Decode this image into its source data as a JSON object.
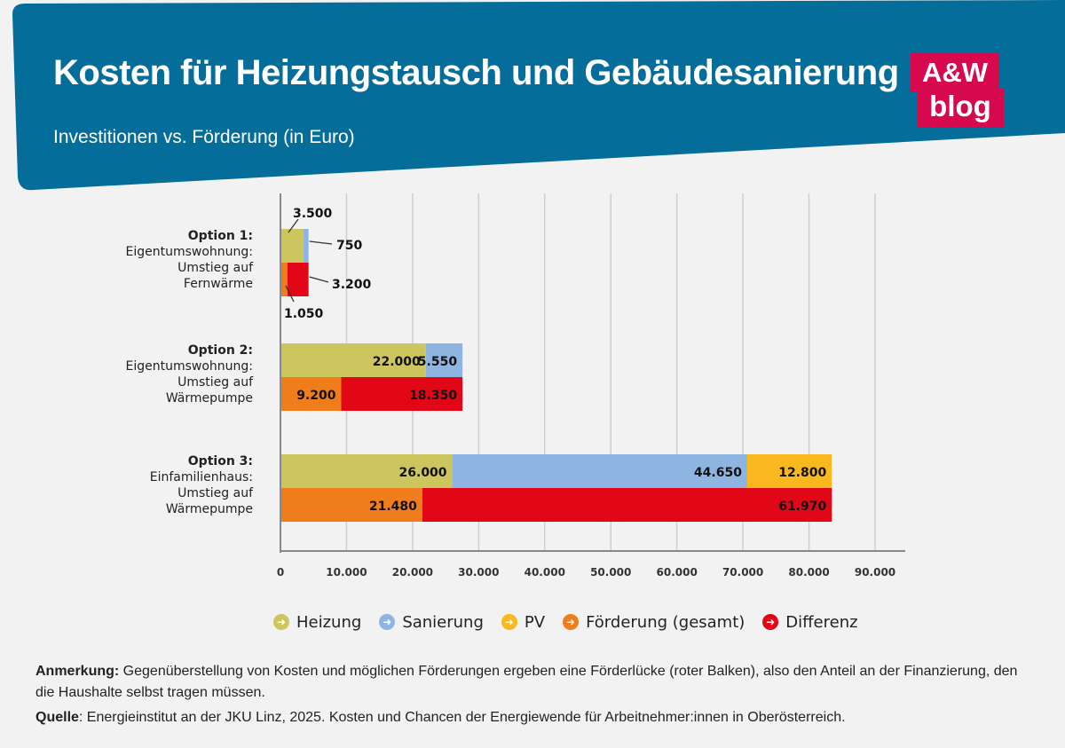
{
  "header": {
    "title": "Kosten für Heizungstausch und Gebäudesanierung",
    "subtitle": "Investitionen vs. Förderung (in Euro)",
    "logo_line1": "A&W",
    "logo_line2": "blog",
    "background_color": "#046d99",
    "logo_color": "#d6094e"
  },
  "chart_data": {
    "type": "bar",
    "orientation": "horizontal",
    "stacked": true,
    "xlim": [
      0,
      90000
    ],
    "x_ticks": [
      0,
      10000,
      20000,
      30000,
      40000,
      50000,
      60000,
      70000,
      80000,
      90000
    ],
    "x_tick_labels": [
      "0",
      "10.000",
      "20.000",
      "30.000",
      "40.000",
      "50.000",
      "60.000",
      "70.000",
      "80.000",
      "90.000"
    ],
    "grid": "vertical",
    "legend_position": "bottom",
    "colors": {
      "Heizung": "#cdc65f",
      "Sanierung": "#8eb5e1",
      "PV": "#f8b81e",
      "Förderung (gesamt)": "#ef7d1c",
      "Differenz": "#e20716"
    },
    "categories": [
      {
        "label_lines": [
          "Option 1:",
          "Eigentumswohnung:",
          "Umstieg auf",
          "Fernwärme"
        ],
        "cost_bar": [
          {
            "series": "Heizung",
            "value": 3500,
            "label": "3.500"
          },
          {
            "series": "Sanierung",
            "value": 750,
            "label": "750"
          }
        ],
        "funding_bar": [
          {
            "series": "Förderung (gesamt)",
            "value": 1050,
            "label": "1.050"
          },
          {
            "series": "Differenz",
            "value": 3200,
            "label": "3.200"
          }
        ]
      },
      {
        "label_lines": [
          "Option 2:",
          "Eigentumswohnung:",
          "Umstieg auf",
          "Wärmepumpe"
        ],
        "cost_bar": [
          {
            "series": "Heizung",
            "value": 22000,
            "label": "22.000"
          },
          {
            "series": "Sanierung",
            "value": 5550,
            "label": "5.550"
          }
        ],
        "funding_bar": [
          {
            "series": "Förderung (gesamt)",
            "value": 9200,
            "label": "9.200"
          },
          {
            "series": "Differenz",
            "value": 18350,
            "label": "18.350"
          }
        ]
      },
      {
        "label_lines": [
          "Option 3:",
          "Einfamilienhaus:",
          "Umstieg auf",
          "Wärmepumpe"
        ],
        "cost_bar": [
          {
            "series": "Heizung",
            "value": 26000,
            "label": "26.000"
          },
          {
            "series": "Sanierung",
            "value": 44650,
            "label": "44.650"
          },
          {
            "series": "PV",
            "value": 12800,
            "label": "12.800"
          }
        ],
        "funding_bar": [
          {
            "series": "Förderung (gesamt)",
            "value": 21480,
            "label": "21.480"
          },
          {
            "series": "Differenz",
            "value": 61970,
            "label": "61.970"
          }
        ]
      }
    ],
    "legend": [
      {
        "name": "Heizung",
        "color": "#cdc65f"
      },
      {
        "name": "Sanierung",
        "color": "#8eb5e1"
      },
      {
        "name": "PV",
        "color": "#f8b81e"
      },
      {
        "name": "Förderung (gesamt)",
        "color": "#ef7d1c"
      },
      {
        "name": "Differenz",
        "color": "#e20716"
      }
    ]
  },
  "footnote": {
    "note_label": "Anmerkung:",
    "note_text": " Gegenüberstellung von Kosten und möglichen Förderungen ergeben eine Förderlücke (roter Balken), also den Anteil an der Finanzierung, den die Haushalte selbst tragen müssen.",
    "source_label": "Quelle",
    "source_text": ": Energieinstitut an der JKU Linz, 2025. Kosten und Chancen der Energiewende für Arbeitnehmer:innen in Oberösterreich."
  }
}
